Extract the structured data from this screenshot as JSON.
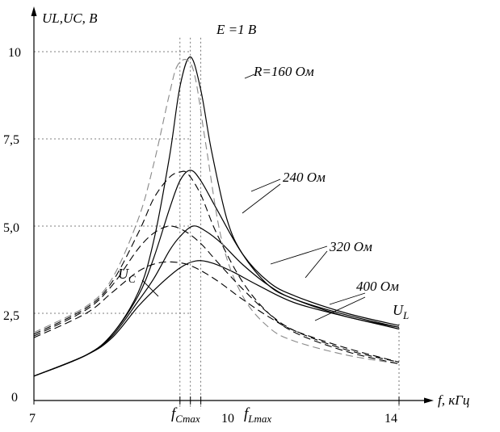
{
  "chart_data": {
    "type": "line",
    "title": "E =1 В",
    "xlabel": "f,   кГц",
    "ylabel": "UL,UC,  B",
    "xlim": [
      7,
      14
    ],
    "ylim": [
      0,
      10
    ],
    "grid": false,
    "x_ticks": [
      "7",
      "10",
      "14"
    ],
    "y_ticks": [
      "0",
      "2,5",
      "5,0",
      "7,5",
      "10"
    ],
    "annotations": {
      "r160": "R=160  Ом",
      "r240": "240  Ом",
      "r320": "320 Ом",
      "r400": "400 Ом",
      "uc": "U",
      "uc_sub": "C",
      "ul": "U",
      "ul_sub": "L",
      "fc": "f",
      "fc_sub": "Cmax",
      "fl": "f",
      "fl_sub": "Lmax"
    },
    "series": [
      {
        "name": "UL R=160 Ом",
        "style": "solid",
        "x": [
          7,
          8,
          8.5,
          9,
          9.3,
          9.6,
          9.8,
          10,
          10.2,
          10.4,
          10.7,
          11,
          11.5,
          12,
          13,
          14
        ],
        "y": [
          0.7,
          1.3,
          1.9,
          3.1,
          4.6,
          7.0,
          9.0,
          9.85,
          8.9,
          7.2,
          5.2,
          4.2,
          3.3,
          2.9,
          2.4,
          2.1
        ]
      },
      {
        "name": "UL R=240 Ом",
        "style": "solid",
        "x": [
          7,
          8,
          8.5,
          9,
          9.3,
          9.6,
          9.8,
          10,
          10.2,
          10.5,
          11,
          11.5,
          12,
          13,
          14
        ],
        "y": [
          0.7,
          1.3,
          1.9,
          3.0,
          4.1,
          5.5,
          6.3,
          6.6,
          6.3,
          5.5,
          4.2,
          3.4,
          3.0,
          2.5,
          2.15
        ]
      },
      {
        "name": "UL R=320 Ом",
        "style": "solid",
        "x": [
          7,
          8,
          8.5,
          9,
          9.3,
          9.6,
          9.8,
          10.05,
          10.3,
          10.6,
          11,
          11.5,
          12,
          13,
          14
        ],
        "y": [
          0.7,
          1.3,
          1.85,
          2.85,
          3.5,
          4.3,
          4.7,
          5.0,
          4.85,
          4.5,
          3.9,
          3.3,
          2.9,
          2.45,
          2.1
        ]
      },
      {
        "name": "UL R=400 Ом",
        "style": "solid",
        "x": [
          7,
          8,
          8.5,
          9,
          9.4,
          9.8,
          10.1,
          10.4,
          10.8,
          11.3,
          12,
          13,
          14
        ],
        "y": [
          0.7,
          1.3,
          1.8,
          2.7,
          3.3,
          3.8,
          4.0,
          3.95,
          3.7,
          3.3,
          2.8,
          2.4,
          2.05
        ]
      },
      {
        "name": "UC R=160 Ом",
        "style": "dashed",
        "x": [
          7,
          8,
          8.5,
          9,
          9.3,
          9.6,
          9.75,
          9.95,
          10.1,
          10.3,
          10.6,
          11,
          11.5,
          12,
          13,
          14
        ],
        "y": [
          1.95,
          2.7,
          3.5,
          5.2,
          6.8,
          8.8,
          9.6,
          9.75,
          9.2,
          7.3,
          4.6,
          3.0,
          2.1,
          1.7,
          1.3,
          1.05
        ]
      },
      {
        "name": "UC R=240 Ом",
        "style": "dashed",
        "x": [
          7,
          8,
          8.5,
          9,
          9.3,
          9.6,
          9.8,
          9.95,
          10.2,
          10.5,
          11,
          11.5,
          12,
          13,
          14
        ],
        "y": [
          1.9,
          2.65,
          3.4,
          4.8,
          5.8,
          6.4,
          6.55,
          6.5,
          5.9,
          4.8,
          3.4,
          2.5,
          1.95,
          1.4,
          1.05
        ]
      },
      {
        "name": "UC R=320 Ом",
        "style": "dashed",
        "x": [
          7,
          8,
          8.5,
          9,
          9.3,
          9.6,
          9.9,
          10.2,
          10.5,
          11,
          11.5,
          12,
          13,
          14
        ],
        "y": [
          1.85,
          2.6,
          3.3,
          4.35,
          4.8,
          5.0,
          4.85,
          4.5,
          4.0,
          3.2,
          2.5,
          2.0,
          1.45,
          1.1
        ]
      },
      {
        "name": "UC R=400 Ом",
        "style": "dashed",
        "x": [
          7,
          8,
          8.5,
          9,
          9.4,
          9.8,
          10.1,
          10.5,
          11,
          11.5,
          12,
          13,
          14
        ],
        "y": [
          1.8,
          2.5,
          3.1,
          3.7,
          3.95,
          3.95,
          3.8,
          3.45,
          2.9,
          2.4,
          2.0,
          1.5,
          1.1
        ]
      }
    ],
    "markers": {
      "f_Cmax": 9.8,
      "f_res": 10,
      "f_Lmax": 10.2,
      "y_dotted": [
        2.5,
        5.0,
        7.5,
        10
      ]
    }
  }
}
